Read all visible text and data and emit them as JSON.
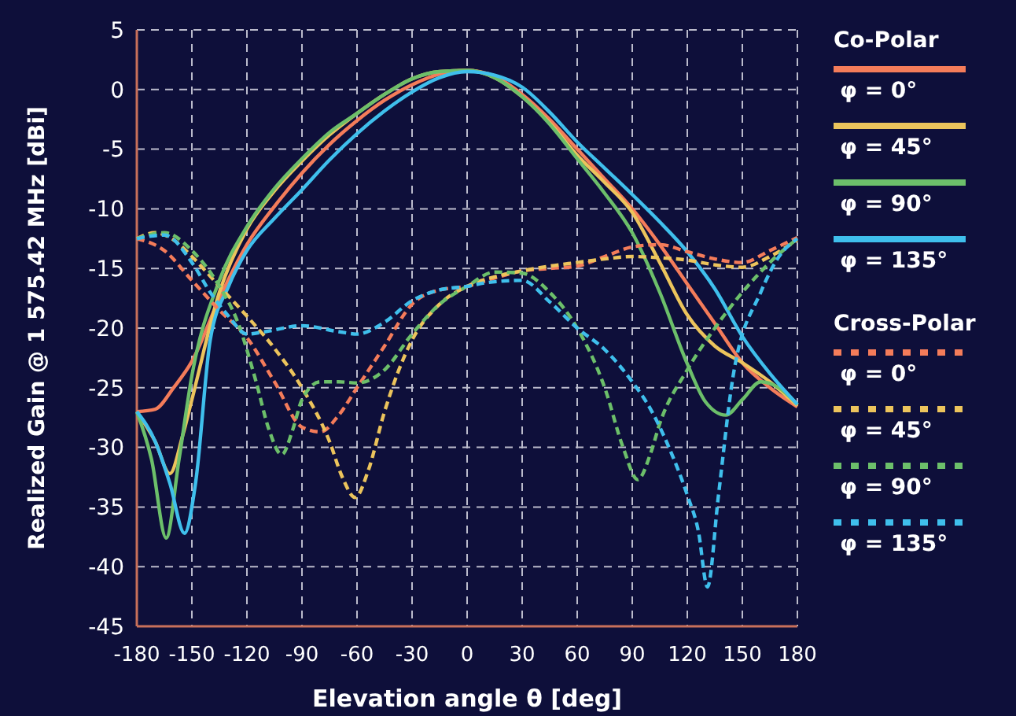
{
  "chart_data": {
    "type": "line",
    "xlabel": "Elevation angle θ [deg]",
    "ylabel": "Realized Gain @ 1 575.42 MHz [dBi]",
    "xlim": [
      -180,
      180
    ],
    "xticks": [
      -180,
      -150,
      -120,
      -90,
      -60,
      -30,
      0,
      30,
      60,
      90,
      120,
      150,
      180
    ],
    "ylim": [
      -45,
      5
    ],
    "yticks": [
      -45,
      -40,
      -35,
      -30,
      -25,
      -20,
      -15,
      -10,
      -5,
      0,
      5
    ],
    "grid": true,
    "legend": "right",
    "legend_title": "Co-Polar",
    "annotations": [
      "Cross-Polar"
    ],
    "marker": "none",
    "series": [
      {
        "name": "φ = 0°",
        "color": "#f47c5a",
        "line_style": "solid",
        "x": [
          -180,
          -170,
          -160,
          -150,
          -135,
          -120,
          -105,
          -90,
          -75,
          -60,
          -45,
          -30,
          -15,
          0,
          15,
          30,
          45,
          60,
          75,
          90,
          105,
          120,
          135,
          150,
          165,
          180
        ],
        "values": [
          -27,
          -26.8,
          -25,
          -22.8,
          -17.5,
          -13,
          -9.8,
          -7,
          -4.6,
          -2.6,
          -0.9,
          0.4,
          1.3,
          1.6,
          1.1,
          -0.4,
          -2.5,
          -5,
          -7.5,
          -10,
          -13,
          -16.3,
          -19.6,
          -22.9,
          -25,
          -26.6
        ]
      },
      {
        "name": "φ = 45°",
        "color": "#ecc45c",
        "line_style": "solid",
        "x": [
          -180,
          -170,
          -162,
          -155,
          -150,
          -135,
          -120,
          -105,
          -90,
          -75,
          -60,
          -45,
          -30,
          -15,
          0,
          15,
          30,
          45,
          60,
          75,
          90,
          105,
          120,
          135,
          150,
          165,
          180
        ],
        "values": [
          -27,
          -29.5,
          -32.2,
          -29,
          -26,
          -17,
          -11.7,
          -8.5,
          -6,
          -3.8,
          -2,
          -0.4,
          0.9,
          1.5,
          1.6,
          1,
          -0.6,
          -2.8,
          -5.5,
          -7.8,
          -10.3,
          -14.5,
          -18.9,
          -21.5,
          -22.9,
          -24.5,
          -26.5
        ]
      },
      {
        "name": "φ = 90°",
        "color": "#6cbf6a",
        "line_style": "solid",
        "x": [
          -180,
          -172,
          -164,
          -157,
          -150,
          -135,
          -120,
          -105,
          -90,
          -75,
          -60,
          -45,
          -30,
          -15,
          0,
          15,
          30,
          45,
          60,
          75,
          90,
          105,
          120,
          130,
          141,
          150,
          160,
          170,
          180
        ],
        "values": [
          -27,
          -31,
          -37.6,
          -31,
          -24,
          -16,
          -11.5,
          -8.3,
          -5.8,
          -3.6,
          -2,
          -0.4,
          0.9,
          1.5,
          1.6,
          1,
          -0.6,
          -2.9,
          -5.8,
          -8.7,
          -12,
          -17,
          -23,
          -26.2,
          -27.3,
          -26,
          -24.5,
          -25,
          -26.4
        ]
      },
      {
        "name": "φ = 135°",
        "color": "#3fbfec",
        "line_style": "solid",
        "x": [
          -180,
          -170,
          -162,
          -154,
          -148,
          -140,
          -130,
          -120,
          -105,
          -90,
          -75,
          -60,
          -45,
          -30,
          -15,
          0,
          15,
          30,
          45,
          60,
          75,
          90,
          105,
          120,
          135,
          150,
          165,
          180
        ],
        "values": [
          -27,
          -29.5,
          -33,
          -37.2,
          -33,
          -21,
          -16.5,
          -13.5,
          -10.8,
          -8.4,
          -5.9,
          -3.7,
          -1.8,
          -0.2,
          1,
          1.5,
          1.2,
          0.2,
          -1.9,
          -4.4,
          -6.6,
          -8.8,
          -11.1,
          -13.6,
          -16.7,
          -20.7,
          -23.8,
          -26.4
        ]
      },
      {
        "name": "φ = 0°",
        "color": "#f47c5a",
        "line_style": "dashed",
        "x": [
          -180,
          -165,
          -150,
          -135,
          -120,
          -105,
          -90,
          -80,
          -70,
          -60,
          -45,
          -30,
          -15,
          0,
          15,
          30,
          45,
          60,
          75,
          90,
          105,
          120,
          135,
          150,
          165,
          180
        ],
        "values": [
          -12.5,
          -13.5,
          -16,
          -18.5,
          -20.8,
          -24.5,
          -28.3,
          -28.7,
          -27.3,
          -25,
          -21.5,
          -18,
          -16.8,
          -16.5,
          -15.8,
          -15.2,
          -15,
          -14.8,
          -14,
          -13.2,
          -13,
          -13.6,
          -14.2,
          -14.5,
          -13.5,
          -12.4
        ]
      },
      {
        "name": "φ = 45°",
        "color": "#ecc45c",
        "line_style": "dashed",
        "x": [
          -180,
          -170,
          -160,
          -150,
          -135,
          -120,
          -105,
          -90,
          -75,
          -68,
          -61,
          -54,
          -45,
          -30,
          -15,
          0,
          15,
          30,
          45,
          60,
          75,
          90,
          105,
          120,
          135,
          150,
          165,
          180
        ],
        "values": [
          -12.5,
          -12,
          -12.6,
          -14,
          -16.5,
          -19,
          -21.7,
          -25,
          -29.5,
          -32.5,
          -34.2,
          -32,
          -27,
          -21,
          -18,
          -16.5,
          -15.7,
          -15.2,
          -14.8,
          -14.5,
          -14.2,
          -14,
          -14.1,
          -14.3,
          -14.7,
          -14.9,
          -14,
          -12.6
        ]
      },
      {
        "name": "φ = 90°",
        "color": "#6cbf6a",
        "line_style": "dashed",
        "x": [
          -180,
          -165,
          -150,
          -135,
          -125,
          -115,
          -108,
          -101,
          -95,
          -90,
          -80,
          -70,
          -60,
          -45,
          -30,
          -15,
          0,
          15,
          30,
          45,
          60,
          75,
          85,
          93,
          100,
          105,
          120,
          135,
          150,
          165,
          180
        ],
        "values": [
          -12.5,
          -12,
          -13.5,
          -16.5,
          -19.5,
          -24.5,
          -28.5,
          -30.6,
          -28.5,
          -26,
          -24.5,
          -24.5,
          -24.6,
          -23.5,
          -20.5,
          -18,
          -16.5,
          -15.3,
          -15.4,
          -17,
          -20,
          -25,
          -30,
          -32.7,
          -30.5,
          -28,
          -23.5,
          -20,
          -17,
          -14.5,
          -12.5
        ]
      },
      {
        "name": "φ = 135°",
        "color": "#3fbfec",
        "line_style": "dashed",
        "x": [
          -180,
          -165,
          -150,
          -140,
          -130,
          -120,
          -110,
          -90,
          -70,
          -60,
          -45,
          -30,
          -15,
          0,
          10,
          30,
          45,
          60,
          75,
          90,
          100,
          110,
          120,
          126,
          131,
          137,
          145,
          160,
          170,
          180
        ],
        "values": [
          -12.5,
          -12.2,
          -14.5,
          -17,
          -19,
          -20.5,
          -20.3,
          -19.8,
          -20.3,
          -20.5,
          -19.5,
          -17.7,
          -16.8,
          -16.5,
          -16.2,
          -16,
          -17.8,
          -20,
          -21.8,
          -24.5,
          -26.8,
          -30,
          -34,
          -37,
          -41.7,
          -34,
          -24,
          -17,
          -14,
          -12.5
        ]
      }
    ]
  }
}
